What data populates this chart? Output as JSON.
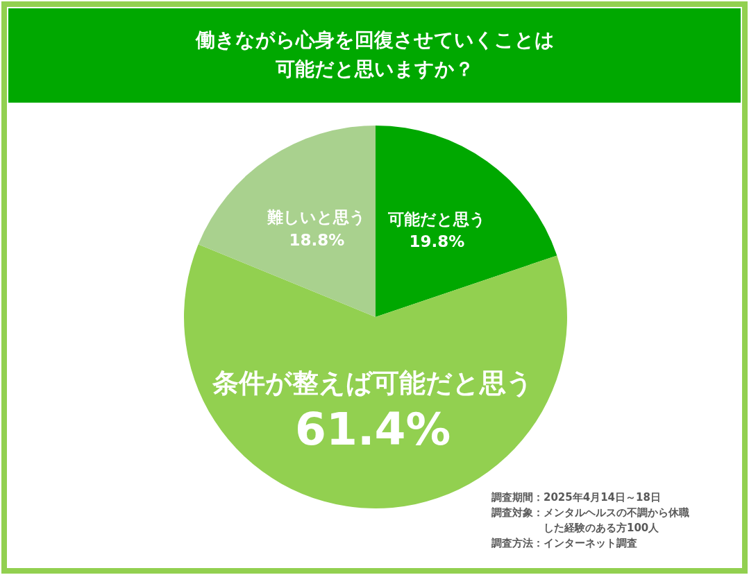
{
  "chart_data": {
    "type": "pie",
    "title": "働きながら心身を回復させていくことは可能だと思いますか？",
    "categories": [
      "可能だと思う",
      "条件が整えば可能だと思う",
      "難しいと思う"
    ],
    "values": [
      19.8,
      61.4,
      18.8
    ],
    "colors": [
      "#00a800",
      "#92d050",
      "#a9d18e"
    ],
    "value_labels": [
      "19.8%",
      "61.4%",
      "18.8%"
    ],
    "annotations": [
      "調査期間：2025年4月14日～18日",
      "調査対象：メンタルヘルスの不調から休職した経験のある方100人",
      "調査方法：インターネット調査"
    ]
  }
}
